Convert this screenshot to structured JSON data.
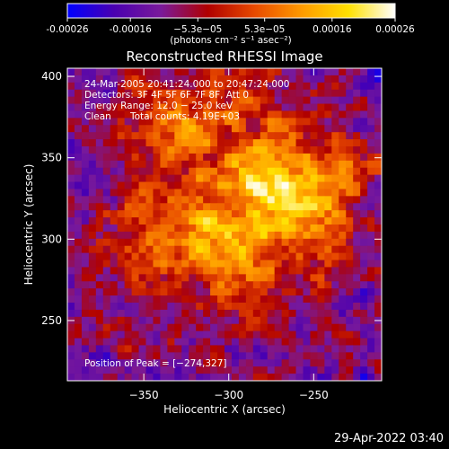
{
  "colorbar": {
    "tick_labels": [
      "-0.00026",
      "-0.00016",
      "−5.3e−05",
      "5.3e−05",
      "0.00016",
      "0.00026"
    ],
    "tick_values": [
      -0.00026,
      -0.00016,
      -5.3e-05,
      5.3e-05,
      0.00016,
      0.00026
    ],
    "range": [
      -0.00026,
      0.00026
    ],
    "units": "(photons cm⁻² s⁻¹ asec⁻²)",
    "colormap": [
      "#0000ff",
      "#4a00b0",
      "#7a1a9a",
      "#b00000",
      "#e84a00",
      "#ff9a00",
      "#ffe000",
      "#ffffff"
    ]
  },
  "title": "Reconstructed RHESSI Image",
  "annotations": {
    "time": "24-Mar-2005 20:41:24.000 to 20:47:24.000",
    "detectors": "Detectors: 3F 4F 5F 6F 7F 8F, Att 0",
    "energy": "Energy Range: 12.0 − 25.0 keV",
    "method": "Clean",
    "counts": "Total counts: 4.19E+03",
    "peak": "Position of Peak = [−274,327]"
  },
  "footer_date": "29-Apr-2022 03:40",
  "chart_data": {
    "type": "heatmap",
    "title": "Reconstructed RHESSI Image",
    "xlabel": "Heliocentric X (arcsec)",
    "ylabel": "Heliocentric Y (arcsec)",
    "xlim": [
      -395,
      -210
    ],
    "ylim": [
      213,
      405
    ],
    "x_ticks": [
      -350,
      -300,
      -250
    ],
    "y_ticks": [
      250,
      300,
      350,
      400
    ],
    "x_tick_labels": [
      "−350",
      "−300",
      "−250"
    ],
    "y_tick_labels": [
      "250",
      "300",
      "350",
      "400"
    ],
    "peak": [
      -274,
      327
    ],
    "value_range": [
      -0.00026,
      0.00026
    ],
    "grid": false,
    "legend": "colorbar-top"
  }
}
